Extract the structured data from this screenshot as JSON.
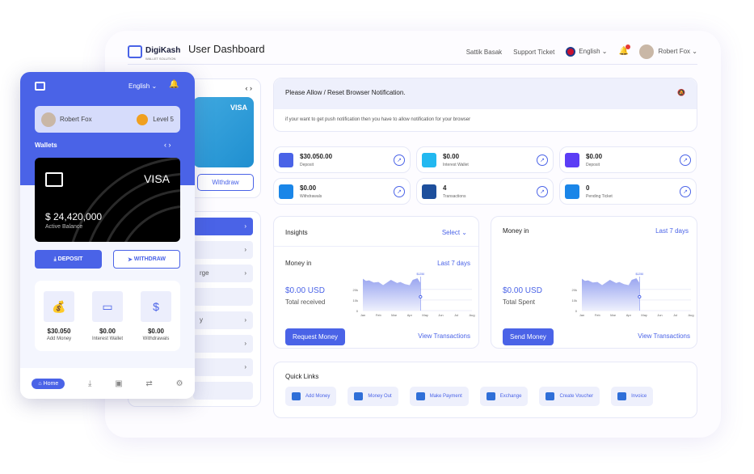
{
  "header": {
    "brand": "DigiKash",
    "brand_sub": "WALLET SOLUTION",
    "title": "User Dashboard",
    "links": [
      "Sattik Basak",
      "Support Ticket"
    ],
    "language": "English",
    "user": "Robert Fox"
  },
  "left": {
    "card_brand": "VISA",
    "withdraw": "Withdraw",
    "menu_fragments": [
      "rge",
      "y"
    ]
  },
  "notification": {
    "title": "Please Allow / Reset Browser Notification.",
    "body": "if your want to get push notification then you have to allow notification for your browser"
  },
  "stats": [
    {
      "value": "$30.050.00",
      "label": "Deposit",
      "color": "#4a63e7"
    },
    {
      "value": "$0.00",
      "label": "Interest Wallet",
      "color": "#22b8f0"
    },
    {
      "value": "$0.00",
      "label": "Deposit",
      "color": "#5b3df5"
    },
    {
      "value": "$0.00",
      "label": "Withdrawals",
      "color": "#1a86e8"
    },
    {
      "value": "4",
      "label": "Transactions",
      "color": "#1d4f9c"
    },
    {
      "value": "0",
      "label": "Pending Ticket",
      "color": "#1a86e8"
    }
  ],
  "insights": {
    "title": "Insights",
    "select": "Select",
    "sub": "Money in",
    "range": "Last 7 days",
    "amount": "$0.00 USD",
    "amount_label": "Total received",
    "button": "Request Money",
    "link": "View Transactions"
  },
  "money_in": {
    "title": "Money in",
    "range": "Last 7 days",
    "amount": "$0.00 USD",
    "amount_label": "Total Spent",
    "button": "Send Money",
    "link": "View Transactions"
  },
  "chart_data": {
    "type": "area",
    "categories": [
      "Jan",
      "Feb",
      "Mar",
      "Apr",
      "May",
      "Jun",
      "Jul",
      "Aug"
    ],
    "y_ticks": [
      "0",
      "10k",
      "20k"
    ],
    "ylim": [
      0,
      32000
    ],
    "x": [
      0,
      0.2,
      0.4,
      0.7,
      1,
      1.3,
      1.8,
      2.2,
      2.4,
      2.7,
      3,
      3.2,
      3.5,
      3.7
    ],
    "values": [
      30000,
      28000,
      28500,
      26500,
      27000,
      24000,
      29000,
      26000,
      27000,
      25000,
      24000,
      29000,
      30500,
      26000
    ],
    "tooltip": "$1250",
    "marker_value": 13000,
    "grid": true
  },
  "quick_links": {
    "title": "Quick Links",
    "items": [
      "Add Money",
      "Money Out",
      "Make Payment",
      "Exchange",
      "Create Voucher",
      "Invoice"
    ]
  },
  "phone": {
    "language": "English",
    "user": "Robert Fox",
    "level": "Level 5",
    "wallets": "Wallets",
    "card_brand": "VISA",
    "balance": "$ 24,420,000",
    "balance_label": "Active Balance",
    "deposit": "DEPOSIT",
    "withdraw": "WITHDRAW",
    "tiles": [
      {
        "value": "$30.050",
        "label": "Add Money"
      },
      {
        "value": "$0.00",
        "label": "Interest Wallet"
      },
      {
        "value": "$0.00",
        "label": "Withdrawals"
      }
    ],
    "nav_home": "Home"
  },
  "colors": {
    "accent": "#4a63e7"
  }
}
